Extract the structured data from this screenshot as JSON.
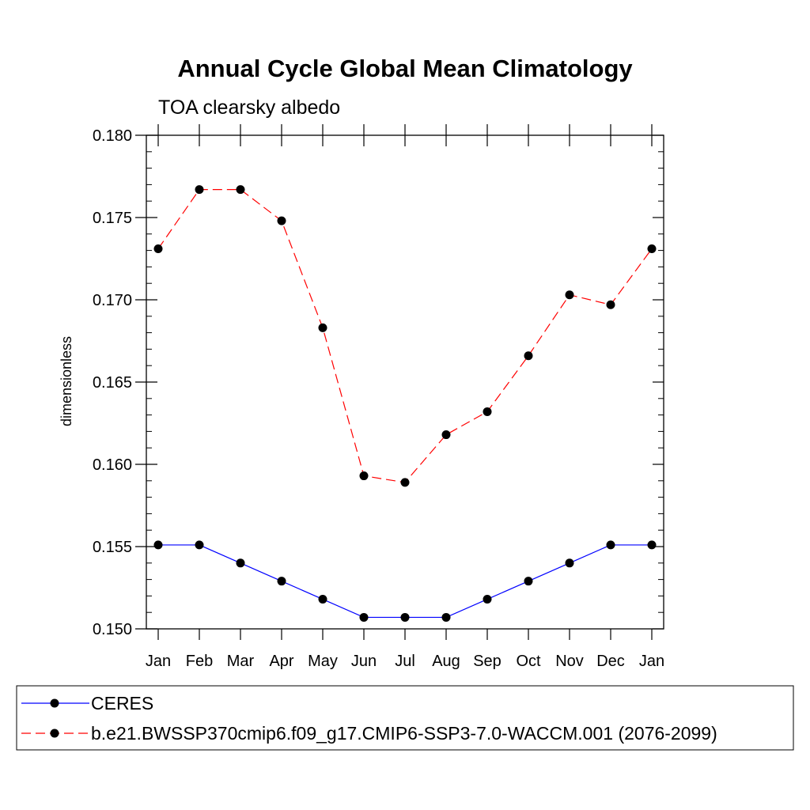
{
  "chart_data": {
    "type": "line",
    "title": "Annual Cycle Global Mean Climatology",
    "subtitle": "TOA clearsky albedo",
    "ylabel": "dimensionless",
    "xlabel": "",
    "categories": [
      "Jan",
      "Feb",
      "Mar",
      "Apr",
      "May",
      "Jun",
      "Jul",
      "Aug",
      "Sep",
      "Oct",
      "Nov",
      "Dec",
      "Jan"
    ],
    "ylim": [
      0.15,
      0.18
    ],
    "yticks": [
      "0.150",
      "0.155",
      "0.160",
      "0.165",
      "0.170",
      "0.175",
      "0.180"
    ],
    "series": [
      {
        "name": "CERES",
        "color": "#0000ff",
        "dash": "solid",
        "marker": "filled-circle",
        "values": [
          0.1551,
          0.1551,
          0.154,
          0.1529,
          0.1518,
          0.1507,
          0.1507,
          0.1507,
          0.1518,
          0.1529,
          0.154,
          0.1551,
          0.1551
        ]
      },
      {
        "name": "b.e21.BWSSP370cmip6.f09_g17.CMIP6-SSP3-7.0-WACCM.001 (2076-2099)",
        "color": "#ff0000",
        "dash": "dashed",
        "marker": "filled-circle",
        "values": [
          0.1731,
          0.1767,
          0.1767,
          0.1748,
          0.1683,
          0.1593,
          0.1589,
          0.1618,
          0.1632,
          0.1666,
          0.1703,
          0.1697,
          0.1731
        ]
      }
    ],
    "legend_position": "bottom",
    "grid": false
  }
}
